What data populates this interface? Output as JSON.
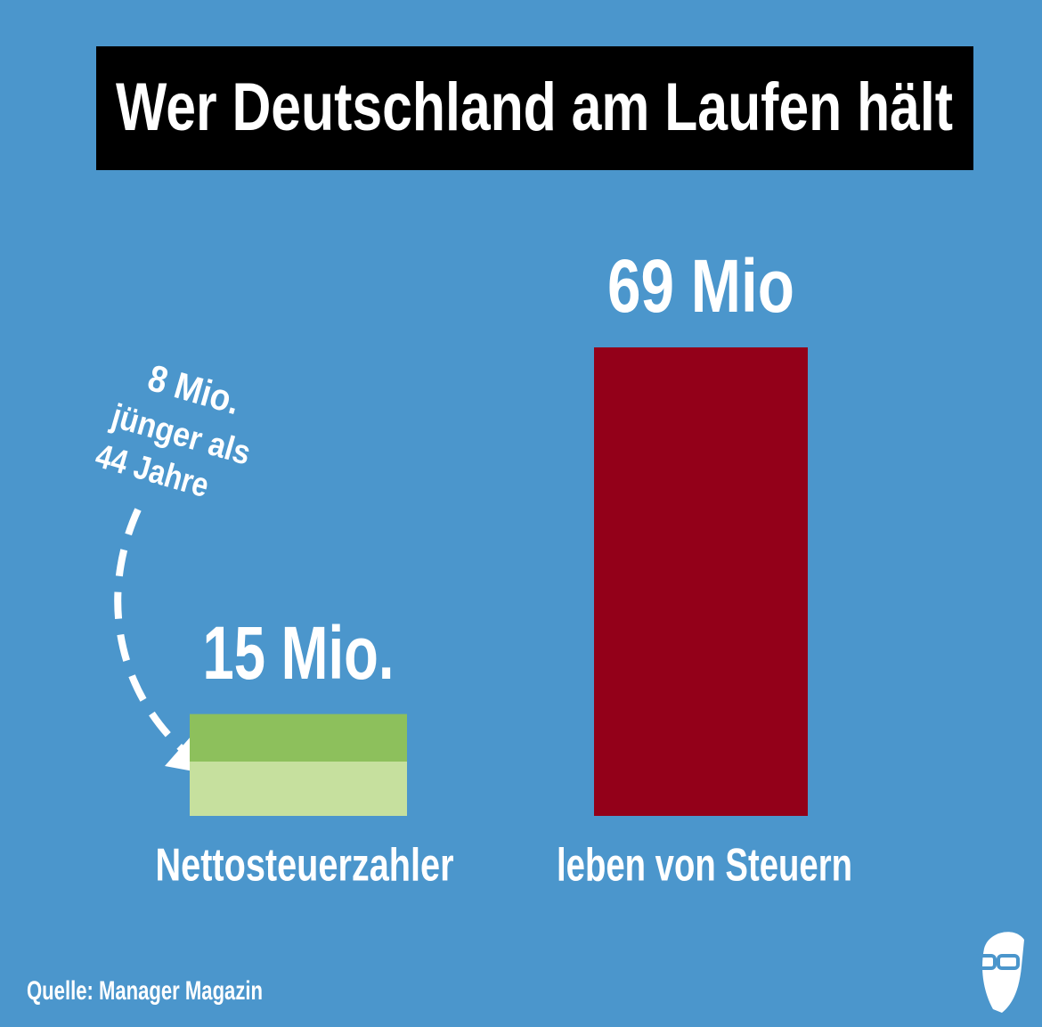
{
  "chart_data": {
    "type": "bar",
    "title": "Wer Deutschland am Laufen hält",
    "categories": [
      "Nettosteuerzahler",
      "leben von Steuern"
    ],
    "values": [
      15,
      69
    ],
    "value_labels": [
      "15 Mio.",
      "69 Mio"
    ],
    "colors": [
      "#8dc05c",
      "#930019"
    ],
    "annotation": {
      "value": 8,
      "label": "8 Mio.",
      "text": [
        "jünger als",
        "44 Jahre"
      ],
      "color": "#c6e09e"
    },
    "source": "Quelle: Manager Magazin"
  }
}
